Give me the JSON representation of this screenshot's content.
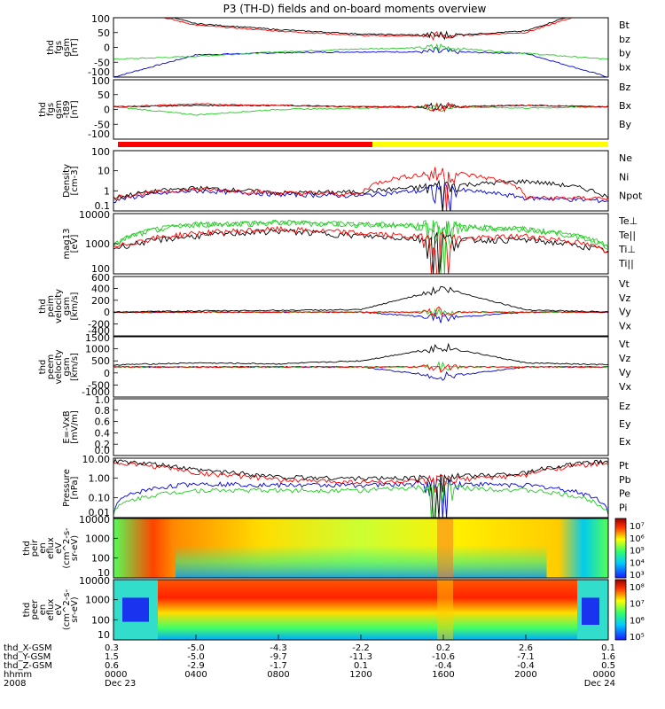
{
  "title": "P3 (TH-D) fields and on-board moments overview",
  "colors": {
    "black": "#000000",
    "red": "#ff0000",
    "green": "#22cc22",
    "blue": "#0000dd",
    "yellow": "#ffff00"
  },
  "panels": [
    {
      "id": "fgs",
      "ylabel": [
        "thd",
        "fgs",
        "gsm",
        "[nT]"
      ],
      "yticks": [
        "100",
        "50",
        "0",
        "-50",
        "-100"
      ],
      "yrange": [
        -100,
        100
      ],
      "legend": [
        {
          "text": "Bt",
          "color": "#000000"
        },
        {
          "text": "bz",
          "color": "#ff0000"
        },
        {
          "text": "by",
          "color": "#22cc22"
        },
        {
          "text": "bx",
          "color": "#0000dd"
        }
      ]
    },
    {
      "id": "fgs_t89",
      "ylabel": [
        "thd",
        "fgs",
        "gsm",
        "-t89",
        "[nT]"
      ],
      "yticks": [
        "100",
        "50",
        "0",
        "-50",
        "-100"
      ],
      "yrange": [
        -120,
        100
      ],
      "legend": [
        {
          "text": "Bz",
          "color": "#ff0000"
        },
        {
          "text": "Bx",
          "color": "#000000"
        },
        {
          "text": "By",
          "color": "#22cc22"
        }
      ]
    },
    {
      "id": "density",
      "ylabel": [
        "Density",
        "[cm-3]"
      ],
      "yticks": [
        "100",
        "10",
        "1",
        "0.1"
      ],
      "yrange": [
        0.05,
        200
      ],
      "log": true,
      "legend": [
        {
          "text": "Ne",
          "color": "#ff0000"
        },
        {
          "text": "Ni",
          "color": "#000000"
        },
        {
          "text": "Npot",
          "color": "#0000dd"
        }
      ]
    },
    {
      "id": "temp",
      "ylabel": [
        "mag13",
        "[eV]"
      ],
      "yticks": [
        "10000",
        "1000",
        "100"
      ],
      "yrange": [
        30,
        15000
      ],
      "log": true,
      "legend": [
        {
          "text": "Te⊥",
          "color": "#ff0000"
        },
        {
          "text": "Te||",
          "color": "#000000"
        },
        {
          "text": "Ti⊥",
          "color": "#22cc22"
        },
        {
          "text": "Ti||",
          "color": "#22cc22"
        }
      ]
    },
    {
      "id": "peim",
      "ylabel": [
        "thd",
        "peim",
        "velocity",
        "gsm",
        "[km/s]"
      ],
      "yticks": [
        "600",
        "400",
        "200",
        "0",
        "-200",
        "-400"
      ],
      "yrange": [
        -400,
        600
      ],
      "legend": [
        {
          "text": "Vt",
          "color": "#000000"
        },
        {
          "text": "Vz",
          "color": "#ff0000"
        },
        {
          "text": "Vy",
          "color": "#22cc22"
        },
        {
          "text": "Vx",
          "color": "#0000dd"
        }
      ]
    },
    {
      "id": "peem",
      "ylabel": [
        "thd",
        "peem",
        "velocity",
        "gsm",
        "[km/s]"
      ],
      "yticks": [
        "1500",
        "1000",
        "500",
        "0",
        "-500",
        "-1000"
      ],
      "yrange": [
        -1500,
        1500
      ],
      "legend": [
        {
          "text": "Vt",
          "color": "#000000"
        },
        {
          "text": "Vz",
          "color": "#ff0000"
        },
        {
          "text": "Vy",
          "color": "#22cc22"
        },
        {
          "text": "Vx",
          "color": "#0000dd"
        }
      ]
    },
    {
      "id": "efield",
      "ylabel": [
        "E=-VxB",
        "[mV/m]"
      ],
      "yticks": [
        "1.0",
        "0.8",
        "0.6",
        "0.4",
        "0.2",
        "0.0"
      ],
      "yrange": [
        0,
        1
      ],
      "legend": [
        {
          "text": "Ez",
          "color": "#ff0000"
        },
        {
          "text": "Ey",
          "color": "#22cc22"
        },
        {
          "text": "Ex",
          "color": "#0000dd"
        }
      ]
    },
    {
      "id": "pressure",
      "ylabel": [
        "Pressure",
        "[nPa]"
      ],
      "yticks": [
        "10.00",
        "1.00",
        "0.10",
        "0.01"
      ],
      "yrange": [
        0.005,
        15
      ],
      "log": true,
      "legend": [
        {
          "text": "Pt",
          "color": "#000000"
        },
        {
          "text": "Pb",
          "color": "#ff0000"
        },
        {
          "text": "Pe",
          "color": "#22cc22"
        },
        {
          "text": "Pi",
          "color": "#0000dd"
        }
      ]
    },
    {
      "id": "peir",
      "ylabel": [
        "thd",
        "peir",
        "en",
        "eflux",
        "eV",
        "(cm^2-s-",
        "sr-eV)"
      ],
      "yticks": [
        "10000",
        "1000",
        "100",
        "10"
      ],
      "cbar": [
        "10⁷",
        "10⁶",
        "10⁵",
        "10⁴",
        "10³"
      ]
    },
    {
      "id": "peer",
      "ylabel": [
        "thd",
        "peer",
        "en",
        "eflux",
        "eV",
        "(cm^2-s-",
        "sr-eV)"
      ],
      "yticks": [
        "10000",
        "1000",
        "100",
        "10"
      ],
      "cbar": [
        "10⁸",
        "10⁷",
        "10⁶",
        "10⁵"
      ]
    }
  ],
  "footer": {
    "rows": [
      {
        "label": "thd_X-GSM",
        "values": [
          "0.3",
          "-5.0",
          "-4.3",
          "-2.2",
          "0.2",
          "2.6",
          "0.1"
        ]
      },
      {
        "label": "thd_Y-GSM",
        "values": [
          "1.5",
          "-5.0",
          "-9.7",
          "-11.3",
          "-10.6",
          "-7.1",
          "1.6"
        ]
      },
      {
        "label": "thd_Z-GSM",
        "values": [
          "0.6",
          "-2.9",
          "-1.7",
          "0.1",
          "-0.4",
          "-0.4",
          "0.5"
        ]
      },
      {
        "label": "hhmm",
        "values": [
          "0000",
          "0400",
          "0800",
          "1200",
          "1600",
          "2000",
          "0000"
        ]
      },
      {
        "label": "2008",
        "values": [
          "Dec 23",
          "",
          "",
          "",
          "",
          "",
          "Dec 24"
        ]
      }
    ]
  },
  "chart_data": [
    {
      "type": "line",
      "title": "P3 (TH-D) fields and on-board moments overview",
      "ylabel": "thd fgs gsm [nT]",
      "ylim": [
        -100,
        100
      ],
      "x": [
        "0000",
        "0400",
        "0800",
        "1200",
        "1600",
        "2000",
        "0000"
      ],
      "series": [
        {
          "name": "Bt",
          "values": [
            150,
            80,
            60,
            45,
            40,
            55,
            150
          ]
        },
        {
          "name": "bz",
          "values": [
            140,
            75,
            55,
            40,
            38,
            50,
            140
          ]
        },
        {
          "name": "by",
          "values": [
            -40,
            -30,
            -15,
            -5,
            0,
            -20,
            -40
          ]
        },
        {
          "name": "bx",
          "values": [
            -100,
            -25,
            -18,
            -15,
            -15,
            -20,
            -100
          ]
        }
      ]
    },
    {
      "type": "line",
      "ylabel": "thd fgs gsm -t89 [nT]",
      "ylim": [
        -120,
        100
      ],
      "series": [
        {
          "name": "Bz",
          "values": [
            0,
            10,
            5,
            0,
            0,
            5,
            0
          ]
        },
        {
          "name": "Bx",
          "values": [
            0,
            5,
            5,
            0,
            0,
            5,
            0
          ]
        },
        {
          "name": "By",
          "values": [
            0,
            -30,
            -10,
            -5,
            0,
            -5,
            0
          ]
        }
      ]
    },
    {
      "type": "line",
      "ylabel": "Density [cm-3]",
      "log": true,
      "ylim": [
        0.05,
        200
      ],
      "series": [
        {
          "name": "Ne",
          "values": [
            0.3,
            1,
            0.6,
            0.5,
            10,
            0.3,
            0.3
          ]
        },
        {
          "name": "Ni",
          "values": [
            0.3,
            1.2,
            0.6,
            0.7,
            1.5,
            3,
            0.3
          ]
        },
        {
          "name": "Npot",
          "values": [
            0.2,
            0.8,
            0.5,
            0.4,
            1,
            0.3,
            0.2
          ]
        }
      ]
    },
    {
      "type": "line",
      "ylabel": "mag13 [eV]",
      "log": true,
      "ylim": [
        30,
        15000
      ],
      "series": [
        {
          "name": "Te⊥",
          "values": [
            400,
            2000,
            3000,
            2000,
            1000,
            1500,
            300
          ]
        },
        {
          "name": "Te||",
          "values": [
            400,
            1500,
            2500,
            1500,
            1000,
            1000,
            300
          ]
        },
        {
          "name": "Ti⊥",
          "values": [
            500,
            5000,
            6000,
            5000,
            4000,
            3000,
            500
          ]
        },
        {
          "name": "Ti||",
          "values": [
            500,
            5000,
            6000,
            5000,
            4000,
            3000,
            500
          ]
        }
      ]
    },
    {
      "type": "line",
      "ylabel": "thd peim velocity gsm [km/s]",
      "ylim": [
        -400,
        600
      ],
      "series": [
        {
          "name": "Vt",
          "values": [
            0,
            20,
            30,
            40,
            400,
            40,
            0
          ]
        },
        {
          "name": "Vz",
          "values": [
            0,
            0,
            0,
            0,
            0,
            0,
            0
          ]
        },
        {
          "name": "Vy",
          "values": [
            0,
            0,
            0,
            0,
            0,
            0,
            0
          ]
        },
        {
          "name": "Vx",
          "values": [
            0,
            0,
            0,
            0,
            -100,
            0,
            0
          ]
        }
      ]
    },
    {
      "type": "line",
      "ylabel": "thd peem velocity gsm [km/s]",
      "ylim": [
        -1500,
        1500
      ],
      "series": [
        {
          "name": "Vt",
          "values": [
            100,
            200,
            150,
            300,
            1000,
            200,
            100
          ]
        },
        {
          "name": "Vz",
          "values": [
            0,
            0,
            0,
            0,
            0,
            0,
            0
          ]
        },
        {
          "name": "Vy",
          "values": [
            0,
            0,
            0,
            0,
            0,
            0,
            0
          ]
        },
        {
          "name": "Vx",
          "values": [
            0,
            0,
            0,
            0,
            -500,
            0,
            0
          ]
        }
      ]
    },
    {
      "type": "line",
      "ylabel": "E=-VxB [mV/m]",
      "ylim": [
        0,
        1
      ],
      "series": []
    },
    {
      "type": "line",
      "ylabel": "Pressure [nPa]",
      "log": true,
      "ylim": [
        0.005,
        15
      ],
      "series": [
        {
          "name": "Pt",
          "values": [
            10,
            3,
            1.2,
            1.0,
            1.1,
            2,
            10
          ]
        },
        {
          "name": "Pb",
          "values": [
            8,
            2,
            0.8,
            0.6,
            0.7,
            1.5,
            8
          ]
        },
        {
          "name": "Pe",
          "values": [
            0.01,
            0.2,
            0.2,
            0.2,
            0.3,
            0.2,
            0.01
          ]
        },
        {
          "name": "Pi",
          "values": [
            0.01,
            0.5,
            0.4,
            0.4,
            0.5,
            0.4,
            0.01
          ]
        }
      ]
    },
    {
      "type": "heatmap",
      "ylabel": "thd peir en eflux eV",
      "ylim": [
        5,
        20000
      ],
      "log": true
    },
    {
      "type": "heatmap",
      "ylabel": "thd peer en eflux eV",
      "ylim": [
        5,
        20000
      ],
      "log": true
    }
  ]
}
